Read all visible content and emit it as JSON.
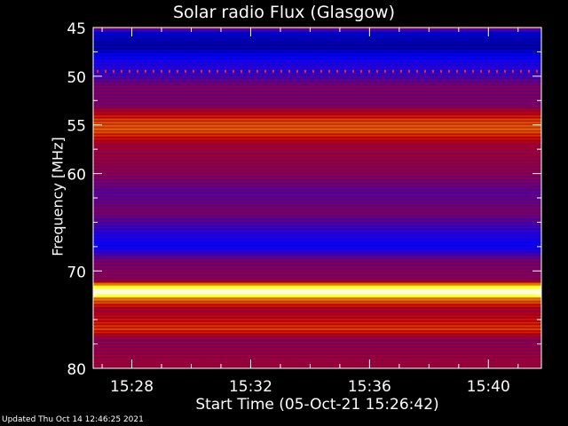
{
  "chart_data": {
    "type": "heatmap",
    "title": "Solar radio Flux (Glasgow)",
    "xlabel": "Start Time (05-Oct-21 15:26:42)",
    "ylabel": "Frequency [MHz]",
    "x_start": "15:26:42",
    "x_end": "15:41:47",
    "x_ticks": [
      "15:28",
      "15:32",
      "15:36",
      "15:40"
    ],
    "y_ticks": [
      45,
      50,
      55,
      60,
      70,
      80
    ],
    "ylim": [
      45,
      80
    ],
    "y_inverted": true,
    "colormap": [
      "#000000",
      "#0000ff",
      "#c00000",
      "#ffff00",
      "#ffffff"
    ],
    "intensity_profile": [
      {
        "freq": 45.0,
        "level": 0.5
      },
      {
        "freq": 45.5,
        "level": 0.2
      },
      {
        "freq": 47.0,
        "level": 0.15
      },
      {
        "freq": 48.5,
        "level": 0.28
      },
      {
        "freq": 49.5,
        "level": 0.3
      },
      {
        "freq": 51.0,
        "level": 0.4
      },
      {
        "freq": 53.0,
        "level": 0.4
      },
      {
        "freq": 54.5,
        "level": 0.55
      },
      {
        "freq": 55.5,
        "level": 0.58
      },
      {
        "freq": 57.0,
        "level": 0.45
      },
      {
        "freq": 60.0,
        "level": 0.42
      },
      {
        "freq": 62.0,
        "level": 0.36
      },
      {
        "freq": 64.0,
        "level": 0.4
      },
      {
        "freq": 66.0,
        "level": 0.3
      },
      {
        "freq": 67.5,
        "level": 0.25
      },
      {
        "freq": 69.0,
        "level": 0.4
      },
      {
        "freq": 71.0,
        "level": 0.42
      },
      {
        "freq": 71.6,
        "level": 0.75
      },
      {
        "freq": 72.0,
        "level": 0.95
      },
      {
        "freq": 72.2,
        "level": 1.0
      },
      {
        "freq": 72.5,
        "level": 0.85
      },
      {
        "freq": 72.8,
        "level": 0.62
      },
      {
        "freq": 74.0,
        "level": 0.45
      },
      {
        "freq": 76.0,
        "level": 0.55
      },
      {
        "freq": 77.0,
        "level": 0.42
      },
      {
        "freq": 80.0,
        "level": 0.45
      }
    ],
    "interference_line_freq": 49.5
  },
  "footer": {
    "updated": "Updated Thu Oct 14 12:46:25 2021"
  }
}
